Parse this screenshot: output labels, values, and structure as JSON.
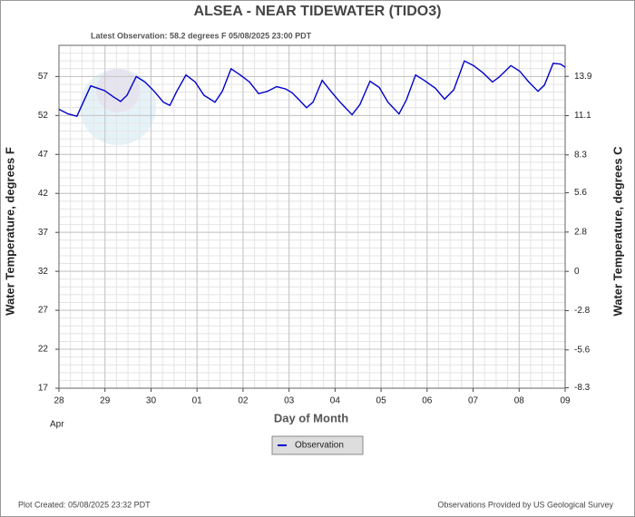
{
  "chart_data": {
    "type": "line",
    "title": "ALSEA - NEAR TIDEWATER  (TIDO3)",
    "subtitle": "Latest Observation: 58.2 degrees F  05/08/2025 23:00 PDT",
    "y_label": "Water Temperature, degrees F",
    "y2_label": "Water Temperature, degrees C",
    "x_label": "Day of Month",
    "month_label": "Apr",
    "footer_left": "Plot Created: 05/08/2025 23:32 PDT",
    "footer_right": "Observations Provided by US Geological Survey",
    "grid": true,
    "legend": "bottom",
    "xlim": [
      0,
      11
    ],
    "xticks": [
      {
        "value": 0,
        "label": "28"
      },
      {
        "value": 1,
        "label": "29"
      },
      {
        "value": 2,
        "label": "30"
      },
      {
        "value": 3,
        "label": "01"
      },
      {
        "value": 4,
        "label": "02"
      },
      {
        "value": 5,
        "label": "03"
      },
      {
        "value": 6,
        "label": "04"
      },
      {
        "value": 7,
        "label": "05"
      },
      {
        "value": 8,
        "label": "06"
      },
      {
        "value": 9,
        "label": "07"
      },
      {
        "value": 10,
        "label": "08"
      },
      {
        "value": 11,
        "label": "09"
      }
    ],
    "ylim": [
      17,
      61
    ],
    "yticks": [
      17,
      22,
      27,
      32,
      37,
      42,
      47,
      52,
      57
    ],
    "y2lim": [
      -8.33,
      16.11
    ],
    "y2ticks": [
      -8.3,
      -5.6,
      -2.8,
      0,
      2.8,
      5.6,
      8.3,
      11.1,
      13.9
    ],
    "x": [
      0,
      0.2,
      0.39,
      0.69,
      0.99,
      1.18,
      1.34,
      1.48,
      1.68,
      1.87,
      2.07,
      2.27,
      2.41,
      2.56,
      2.76,
      2.96,
      3.15,
      3.39,
      3.55,
      3.74,
      3.94,
      4.14,
      4.34,
      4.53,
      4.73,
      4.93,
      5.07,
      5.22,
      5.38,
      5.52,
      5.72,
      5.91,
      6.11,
      6.37,
      6.54,
      6.76,
      6.96,
      7.15,
      7.39,
      7.55,
      7.75,
      7.94,
      8.18,
      8.38,
      8.58,
      8.81,
      9.01,
      9.21,
      9.42,
      9.56,
      9.82,
      10.01,
      10.21,
      10.41,
      10.55,
      10.74,
      10.9,
      11.0
    ],
    "series": [
      {
        "name": "Observation",
        "color": "#0000cc",
        "values": [
          52.8,
          52.2,
          51.9,
          55.8,
          55.2,
          54.4,
          53.8,
          54.6,
          57.0,
          56.3,
          55.1,
          53.7,
          53.3,
          55.1,
          57.2,
          56.3,
          54.6,
          53.7,
          55.1,
          58.0,
          57.2,
          56.3,
          54.8,
          55.1,
          55.7,
          55.4,
          54.9,
          54.0,
          53.0,
          53.7,
          56.5,
          55.1,
          53.7,
          52.1,
          53.4,
          56.4,
          55.6,
          53.7,
          52.2,
          54.0,
          57.2,
          56.5,
          55.5,
          54.1,
          55.3,
          59.0,
          58.4,
          57.5,
          56.3,
          56.9,
          58.4,
          57.7,
          56.3,
          55.1,
          55.9,
          58.7,
          58.6,
          58.2
        ]
      }
    ]
  }
}
